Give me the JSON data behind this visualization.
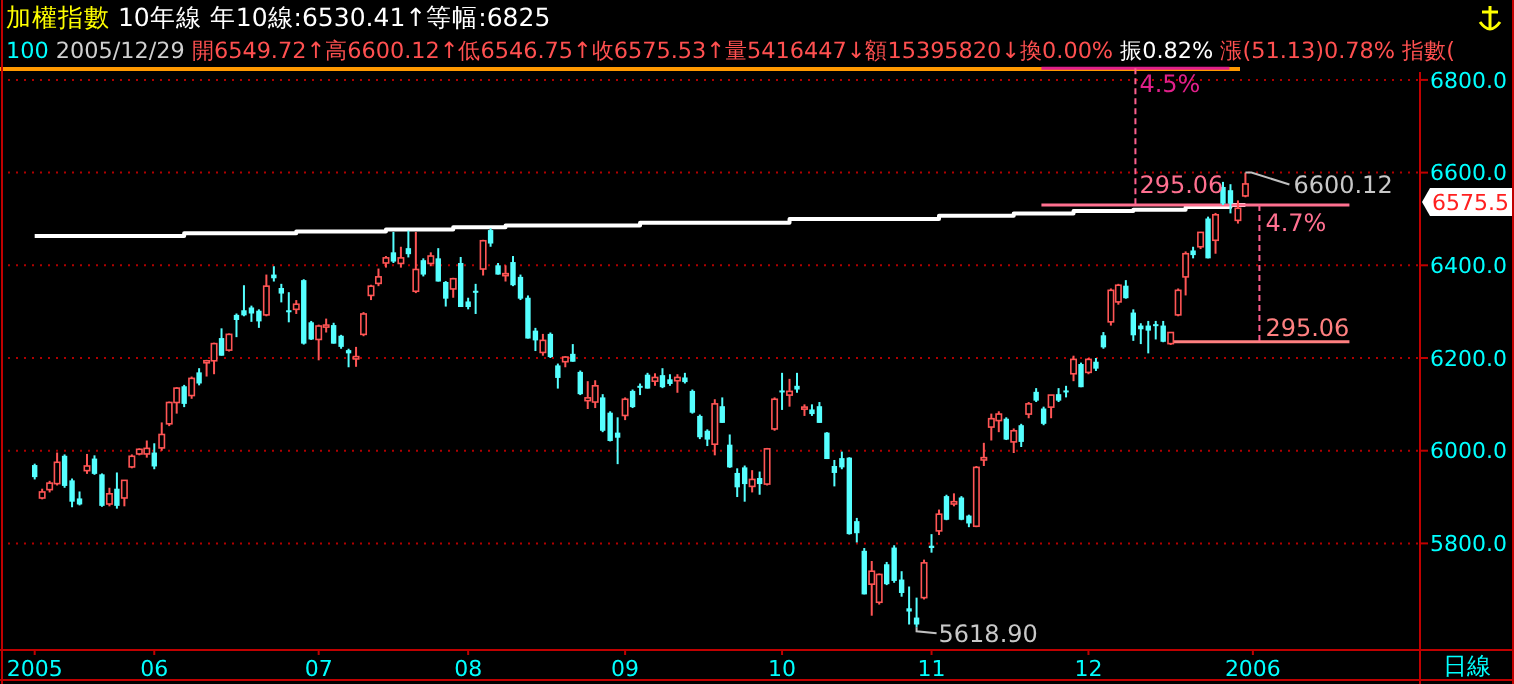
{
  "chart_data": {
    "type": "candlestick",
    "title": "加權指數 10年線 年10線:6530.41↑等幅:6825",
    "subtitle": "100 2005/12/29 開6549.72↑高6600.12↑低6546.75↑收6575.53↑量5416447↓額15395820↓換0.00% 振0.82% 漲(51.13)0.78% 指數(",
    "xlabel": "日線",
    "categories": [
      "2005",
      null,
      null,
      null,
      null,
      null,
      null,
      null,
      null,
      null,
      null,
      null,
      null,
      null,
      null,
      null,
      "06",
      null,
      null,
      null,
      null,
      null,
      null,
      null,
      null,
      null,
      null,
      null,
      null,
      null,
      null,
      null,
      null,
      null,
      null,
      null,
      null,
      null,
      "07",
      null,
      null,
      null,
      null,
      null,
      null,
      null,
      null,
      null,
      null,
      null,
      null,
      null,
      null,
      null,
      null,
      null,
      null,
      null,
      "08",
      null,
      null,
      null,
      null,
      null,
      null,
      null,
      null,
      null,
      null,
      null,
      null,
      null,
      null,
      null,
      null,
      null,
      null,
      null,
      null,
      "09",
      null,
      null,
      null,
      null,
      null,
      null,
      null,
      null,
      null,
      null,
      null,
      null,
      null,
      null,
      null,
      null,
      null,
      null,
      null,
      null,
      "10",
      null,
      null,
      null,
      null,
      null,
      null,
      null,
      null,
      null,
      null,
      null,
      null,
      null,
      null,
      null,
      null,
      null,
      null,
      null,
      "11",
      null,
      null,
      null,
      null,
      null,
      null,
      null,
      null,
      null,
      null,
      null,
      null,
      null,
      null,
      null,
      null,
      null,
      null,
      null,
      null,
      "12",
      null,
      null,
      null,
      null,
      null,
      null,
      null,
      null,
      null,
      null,
      null,
      null,
      null,
      null,
      null,
      null,
      null,
      null,
      null,
      null,
      null,
      "2006",
      null,
      null,
      null,
      null,
      null,
      null,
      null,
      null,
      null,
      null,
      null,
      null,
      null,
      null,
      null,
      null,
      null,
      null,
      null,
      null,
      null,
      null
    ],
    "ohlc": [
      [
        5969,
        5972,
        5938,
        5943
      ],
      [
        5898,
        5918,
        5895,
        5911
      ],
      [
        5916,
        5935,
        5910,
        5930
      ],
      [
        5929,
        5996,
        5925,
        5975
      ],
      [
        5989,
        5992,
        5920,
        5924
      ],
      [
        5936,
        5940,
        5878,
        5890
      ],
      [
        5897,
        5912,
        5882,
        5884
      ],
      [
        5957,
        5993,
        5950,
        5967
      ],
      [
        5983,
        5990,
        5948,
        5950
      ],
      [
        5949,
        5951,
        5879,
        5881
      ],
      [
        5885,
        5920,
        5880,
        5907
      ],
      [
        5918,
        5953,
        5875,
        5881
      ],
      [
        5898,
        5936,
        5880,
        5936
      ],
      [
        5965,
        5992,
        5962,
        5988
      ],
      [
        5993,
        6005,
        5990,
        6003
      ],
      [
        5993,
        6022,
        5985,
        6005
      ],
      [
        5996,
        6016,
        5960,
        5966
      ],
      [
        6006,
        6061,
        6000,
        6035
      ],
      [
        6058,
        6106,
        6053,
        6104
      ],
      [
        6104,
        6137,
        6080,
        6135
      ],
      [
        6139,
        6142,
        6094,
        6101
      ],
      [
        6119,
        6160,
        6112,
        6156
      ],
      [
        6169,
        6178,
        6141,
        6145
      ],
      [
        6190,
        6196,
        6160,
        6194
      ],
      [
        6194,
        6233,
        6165,
        6231
      ],
      [
        6243,
        6264,
        6205,
        6205
      ],
      [
        6217,
        6253,
        6214,
        6251
      ],
      [
        6293,
        6296,
        6245,
        6282
      ],
      [
        6303,
        6357,
        6290,
        6292
      ],
      [
        6309,
        6313,
        6278,
        6296
      ],
      [
        6302,
        6305,
        6265,
        6279
      ],
      [
        6293,
        6380,
        6290,
        6355
      ],
      [
        6380,
        6398,
        6365,
        6372
      ],
      [
        6351,
        6360,
        6320,
        6339
      ],
      [
        6303,
        6342,
        6277,
        6301
      ],
      [
        6305,
        6325,
        6295,
        6316
      ],
      [
        6368,
        6370,
        6229,
        6231
      ],
      [
        6277,
        6280,
        6239,
        6240
      ],
      [
        6240,
        6272,
        6195,
        6269
      ],
      [
        6267,
        6285,
        6255,
        6271
      ],
      [
        6271,
        6276,
        6231,
        6231
      ],
      [
        6248,
        6250,
        6220,
        6224
      ],
      [
        6217,
        6220,
        6180,
        6210
      ],
      [
        6198,
        6224,
        6181,
        6203
      ],
      [
        6251,
        6299,
        6247,
        6295
      ],
      [
        6335,
        6358,
        6325,
        6355
      ],
      [
        6361,
        6393,
        6355,
        6375
      ],
      [
        6405,
        6420,
        6395,
        6416
      ],
      [
        6428,
        6472,
        6405,
        6408
      ],
      [
        6404,
        6440,
        6395,
        6416
      ],
      [
        6437,
        6475,
        6417,
        6424
      ],
      [
        6344,
        6472,
        6340,
        6391
      ],
      [
        6411,
        6415,
        6376,
        6380
      ],
      [
        6404,
        6428,
        6398,
        6420
      ],
      [
        6415,
        6437,
        6365,
        6365
      ],
      [
        6364,
        6366,
        6311,
        6328
      ],
      [
        6349,
        6373,
        6330,
        6371
      ],
      [
        6405,
        6418,
        6310,
        6310
      ],
      [
        6322,
        6330,
        6305,
        6310
      ],
      [
        6345,
        6360,
        6295,
        6341
      ],
      [
        6392,
        6455,
        6378,
        6453
      ],
      [
        6476,
        6480,
        6440,
        6447
      ],
      [
        6400,
        6405,
        6380,
        6380
      ],
      [
        6378,
        6400,
        6365,
        6382
      ],
      [
        6407,
        6420,
        6355,
        6357
      ],
      [
        6375,
        6380,
        6325,
        6328
      ],
      [
        6330,
        6335,
        6242,
        6242
      ],
      [
        6259,
        6265,
        6215,
        6238
      ],
      [
        6212,
        6252,
        6205,
        6238
      ],
      [
        6252,
        6255,
        6200,
        6202
      ],
      [
        6184,
        6188,
        6134,
        6157
      ],
      [
        6192,
        6204,
        6180,
        6202
      ],
      [
        6209,
        6230,
        6192,
        6192
      ],
      [
        6170,
        6173,
        6120,
        6122
      ],
      [
        6108,
        6150,
        6090,
        6114
      ],
      [
        6105,
        6152,
        6092,
        6140
      ],
      [
        6115,
        6122,
        6040,
        6043
      ],
      [
        6082,
        6085,
        6020,
        6021
      ],
      [
        6039,
        6072,
        5971,
        6028
      ],
      [
        6076,
        6115,
        6066,
        6111
      ],
      [
        6129,
        6132,
        6092,
        6094
      ],
      [
        6140,
        6145,
        6120,
        6136
      ],
      [
        6164,
        6168,
        6134,
        6134
      ],
      [
        6150,
        6167,
        6140,
        6158
      ],
      [
        6163,
        6178,
        6135,
        6137
      ],
      [
        6154,
        6165,
        6140,
        6144
      ],
      [
        6151,
        6165,
        6125,
        6158
      ],
      [
        6158,
        6168,
        6145,
        6148
      ],
      [
        6129,
        6132,
        6080,
        6082
      ],
      [
        6075,
        6078,
        6025,
        6029
      ],
      [
        6043,
        6046,
        6010,
        6024
      ],
      [
        6014,
        6111,
        5990,
        6101
      ],
      [
        6096,
        6115,
        6060,
        6060
      ],
      [
        6013,
        6035,
        5963,
        5964
      ],
      [
        5952,
        5962,
        5900,
        5921
      ],
      [
        5964,
        5968,
        5890,
        5928
      ],
      [
        5923,
        5958,
        5910,
        5938
      ],
      [
        5941,
        5955,
        5905,
        5928
      ],
      [
        5928,
        6006,
        5925,
        6004
      ],
      [
        6047,
        6115,
        6043,
        6111
      ],
      [
        6130,
        6168,
        6088,
        6126
      ],
      [
        6120,
        6155,
        6095,
        6128
      ],
      [
        6140,
        6168,
        6125,
        6132
      ],
      [
        6090,
        6100,
        6075,
        6094
      ],
      [
        6089,
        6100,
        6075,
        6079
      ],
      [
        6096,
        6105,
        6060,
        6060
      ],
      [
        6039,
        6040,
        5982,
        5982
      ],
      [
        5967,
        5980,
        5923,
        5952
      ],
      [
        5984,
        5998,
        5960,
        5964
      ],
      [
        5985,
        5986,
        5819,
        5820
      ],
      [
        5848,
        5855,
        5802,
        5822
      ],
      [
        5784,
        5790,
        5690,
        5690
      ],
      [
        5712,
        5762,
        5644,
        5740
      ],
      [
        5673,
        5735,
        5668,
        5733
      ],
      [
        5755,
        5760,
        5710,
        5712
      ],
      [
        5791,
        5796,
        5715,
        5719
      ],
      [
        5722,
        5740,
        5685,
        5693
      ],
      [
        5660,
        5707,
        5625,
        5653
      ],
      [
        5640,
        5683,
        5618.9,
        5625
      ],
      [
        5683,
        5765,
        5679,
        5758
      ],
      [
        5795,
        5820,
        5780,
        5790
      ],
      [
        5827,
        5873,
        5818,
        5863
      ],
      [
        5902,
        5905,
        5850,
        5851
      ],
      [
        5885,
        5908,
        5880,
        5890
      ],
      [
        5899,
        5902,
        5850,
        5851
      ],
      [
        5860,
        5862,
        5835,
        5843
      ],
      [
        5837,
        5967,
        5835,
        5964
      ],
      [
        5980,
        6017,
        5967,
        5985
      ],
      [
        6051,
        6080,
        6022,
        6069
      ],
      [
        6065,
        6085,
        6040,
        6079
      ],
      [
        6069,
        6072,
        6023,
        6024
      ],
      [
        6019,
        6048,
        5995,
        6043
      ],
      [
        6055,
        6058,
        6008,
        6019
      ],
      [
        6079,
        6105,
        6070,
        6101
      ],
      [
        6127,
        6135,
        6105,
        6108
      ],
      [
        6091,
        6095,
        6055,
        6058
      ],
      [
        6094,
        6120,
        6070,
        6120
      ],
      [
        6122,
        6135,
        6105,
        6108
      ],
      [
        6130,
        6140,
        6115,
        6126
      ],
      [
        6166,
        6205,
        6150,
        6197
      ],
      [
        6187,
        6190,
        6137,
        6137
      ],
      [
        6169,
        6200,
        6165,
        6197
      ],
      [
        6192,
        6200,
        6172,
        6177
      ],
      [
        6249,
        6256,
        6220,
        6223
      ],
      [
        6278,
        6350,
        6270,
        6346
      ],
      [
        6321,
        6360,
        6315,
        6357
      ],
      [
        6356,
        6368,
        6328,
        6329
      ],
      [
        6298,
        6305,
        6237,
        6249
      ],
      [
        6270,
        6275,
        6230,
        6262
      ],
      [
        6270,
        6280,
        6210,
        6259
      ],
      [
        6273,
        6280,
        6240,
        6270
      ],
      [
        6270,
        6280,
        6234,
        6235
      ],
      [
        6231,
        6256,
        6228,
        6255
      ],
      [
        6293,
        6350,
        6290,
        6346
      ],
      [
        6375,
        6430,
        6335,
        6425
      ],
      [
        6432,
        6440,
        6415,
        6422
      ],
      [
        6440,
        6472,
        6435,
        6471
      ],
      [
        6501,
        6505,
        6415,
        6415
      ],
      [
        6454,
        6513,
        6425,
        6509
      ],
      [
        6569,
        6580,
        6530,
        6533
      ],
      [
        6562,
        6575,
        6512,
        6533
      ],
      [
        6497,
        6540,
        6490,
        6523
      ],
      [
        6549.72,
        6600.12,
        6546.75,
        6575.53
      ],
      null,
      null,
      null,
      null,
      null,
      null,
      null,
      null,
      null,
      null,
      null,
      null,
      null,
      null,
      null,
      null,
      null,
      null,
      null,
      null,
      null,
      null,
      null
    ],
    "series": [
      {
        "type": "step",
        "color": "#ffffff",
        "values": [
          6463,
          6463,
          6463,
          6463,
          6463,
          6463,
          6463,
          6463,
          6463,
          6463,
          6463,
          6463,
          6463,
          6463,
          6463,
          6463,
          6463,
          6463,
          6463,
          6463,
          6469,
          6469,
          6469,
          6469,
          6469,
          6469,
          6469,
          6469,
          6469,
          6469,
          6469,
          6469,
          6469,
          6469,
          6469,
          6473,
          6473,
          6473,
          6473,
          6473,
          6473,
          6473,
          6473,
          6473,
          6473,
          6473,
          6473,
          6477,
          6477,
          6477,
          6477,
          6477,
          6477,
          6477,
          6477,
          6477,
          6482,
          6482,
          6482,
          6482,
          6482,
          6482,
          6482,
          6486,
          6486,
          6486,
          6486,
          6486,
          6486,
          6486,
          6486,
          6486,
          6486,
          6486,
          6486,
          6486,
          6486,
          6486,
          6486,
          6486,
          6486,
          6492,
          6492,
          6492,
          6492,
          6492,
          6492,
          6492,
          6492,
          6492,
          6492,
          6492,
          6492,
          6492,
          6492,
          6492,
          6492,
          6492,
          6492,
          6492,
          6492,
          6500,
          6500,
          6500,
          6500,
          6500,
          6500,
          6500,
          6500,
          6500,
          6500,
          6500,
          6500,
          6500,
          6500,
          6500,
          6500,
          6500,
          6500,
          6500,
          6500,
          6507,
          6507,
          6507,
          6507,
          6507,
          6507,
          6507,
          6507,
          6507,
          6507,
          6512,
          6512,
          6512,
          6512,
          6512,
          6512,
          6512,
          6512,
          6517,
          6517,
          6517,
          6517,
          6517,
          6517,
          6517,
          6517,
          6520,
          6520,
          6520,
          6520,
          6520,
          6520,
          6520,
          6526,
          6526,
          6526,
          6526,
          6526,
          6526,
          6530,
          6530,
          6530,
          null,
          null,
          null,
          null,
          null,
          null,
          null,
          null,
          null,
          null,
          null,
          null,
          null,
          null,
          null,
          null,
          null,
          null,
          null,
          null,
          null,
          null,
          null
        ]
      }
    ],
    "ylim": [
      5570,
      6830
    ],
    "yticks": [
      {
        "value": 5800,
        "label": "5800.0"
      },
      {
        "value": 6000,
        "label": "6000.0"
      },
      {
        "value": 6200,
        "label": "6200.0"
      },
      {
        "value": 6400,
        "label": "6400.0"
      },
      {
        "value": 6600,
        "label": "6600.0"
      },
      {
        "value": 6800,
        "label": "6800.0"
      }
    ],
    "grid": "y",
    "ref_lines": [
      {
        "axis": "y",
        "value": 6825,
        "color": "#e0208a"
      },
      {
        "axis": "y",
        "value": 6530,
        "color": "#ff7090"
      },
      {
        "axis": "y",
        "value": 6235,
        "color": "#ff8080"
      }
    ],
    "annotations": [
      {
        "text": "4.5%",
        "y": 6825
      },
      {
        "text": "295.06",
        "y": 6530
      },
      {
        "text": "4.7%",
        "y": 6530
      },
      {
        "text": "295.06",
        "y": 6235
      },
      "6600.12",
      "5618.90",
      "6575.5"
    ]
  }
}
